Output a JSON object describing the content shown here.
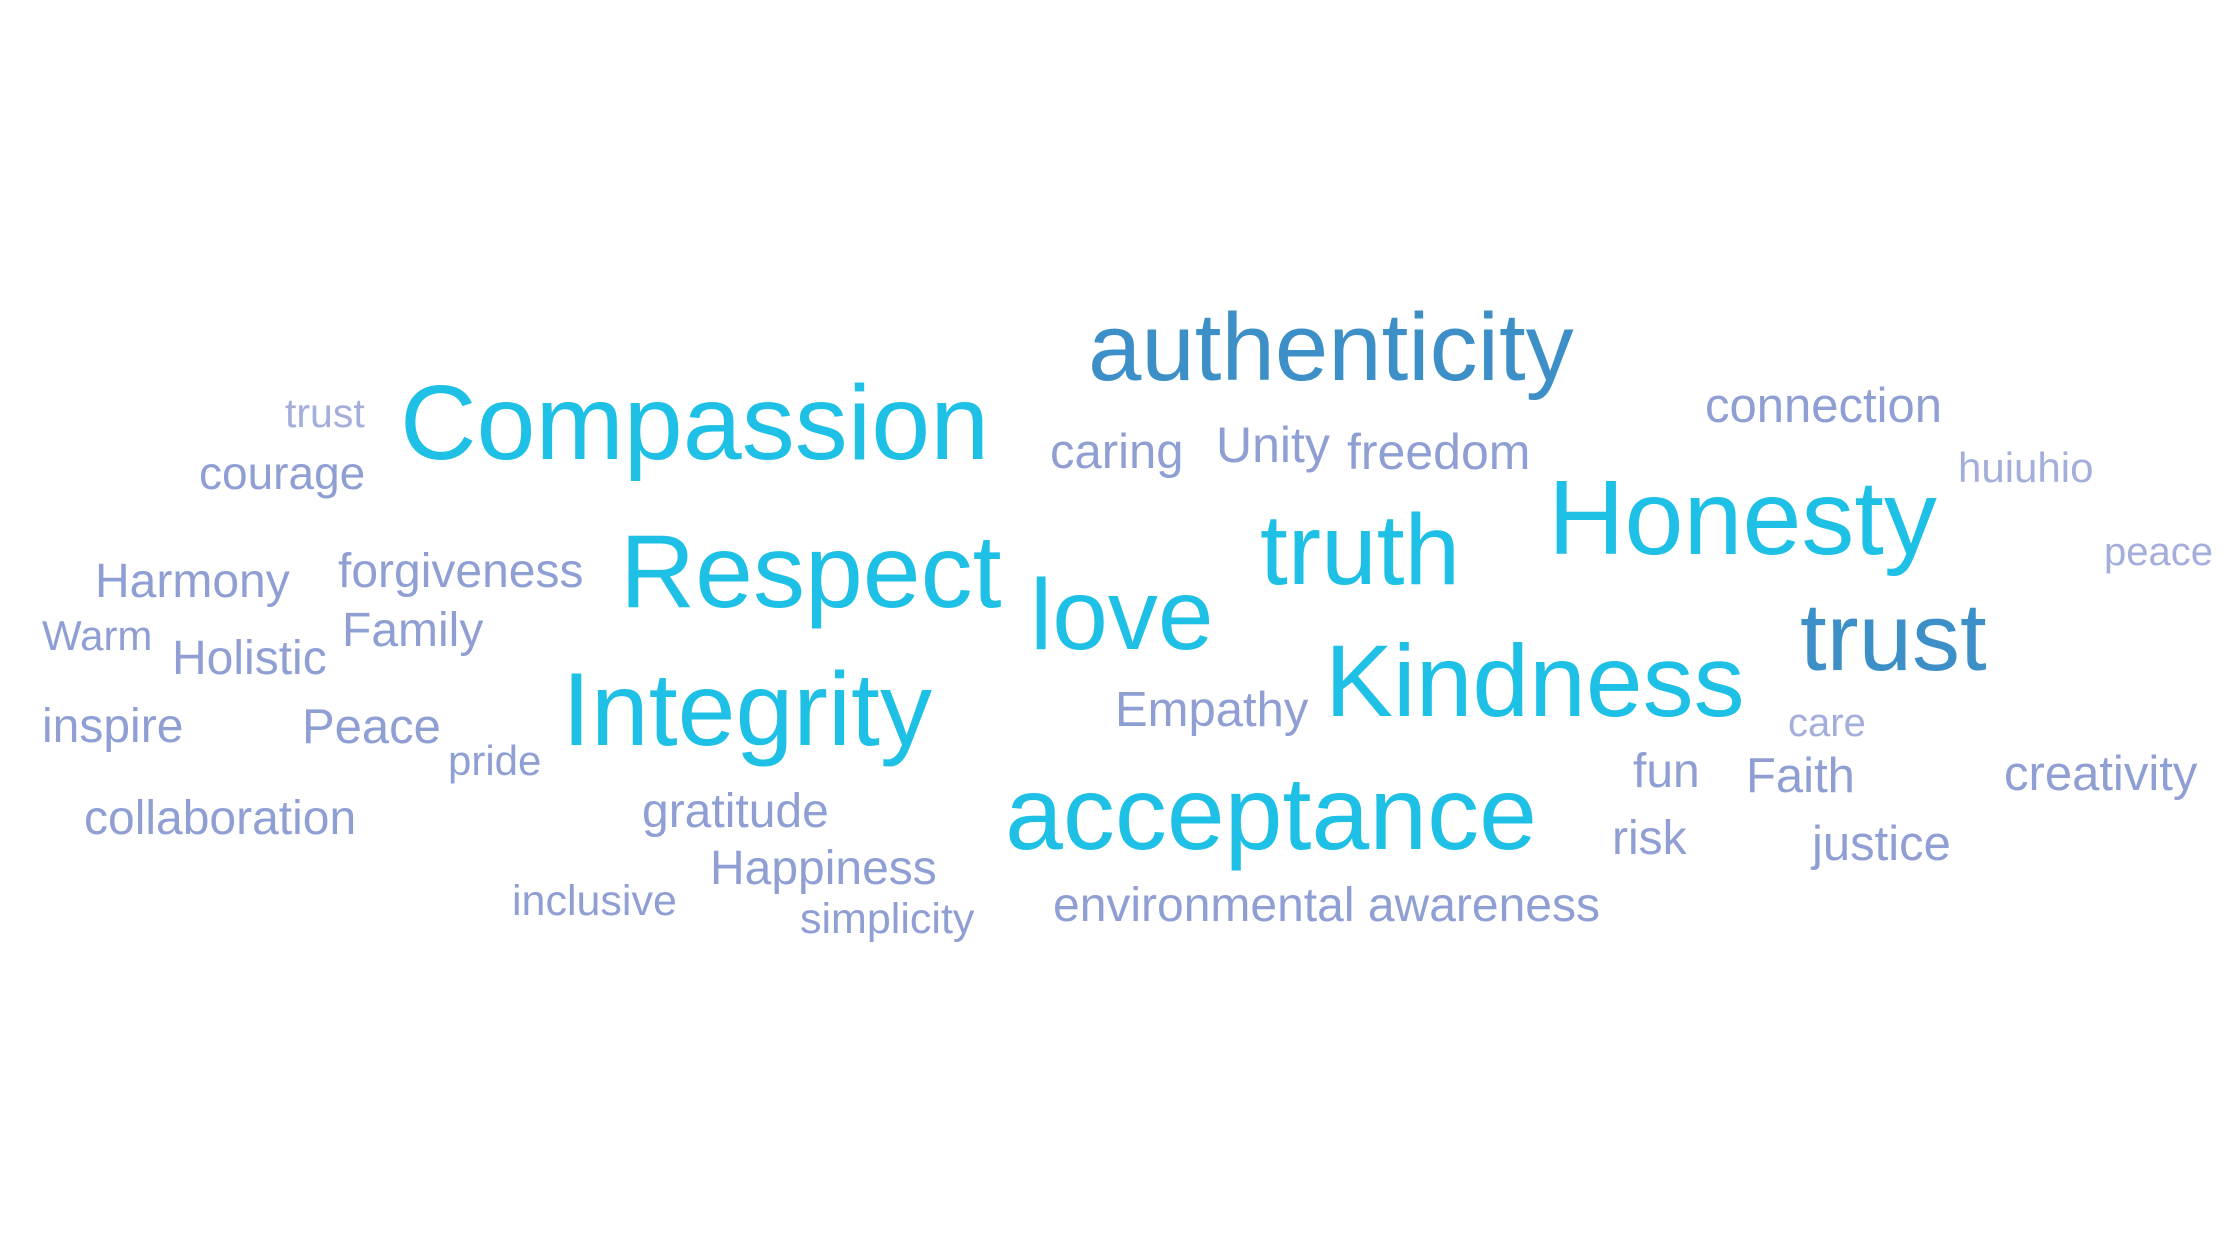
{
  "colors": {
    "background": "#ffffff",
    "cyan": "#1ec0e6",
    "blue": "#3d8fc8",
    "lavender": "#8f9fd3",
    "lavender_light": "#a3aedb"
  },
  "words": {
    "authenticity": "authenticity",
    "compassion": "Compassion",
    "trust_small": "trust",
    "courage": "courage",
    "caring": "caring",
    "unity": "Unity",
    "freedom": "freedom",
    "connection": "connection",
    "huiuhio": "huiuhio",
    "honesty": "Honesty",
    "truth": "truth",
    "respect": "Respect",
    "love": "love",
    "harmony": "Harmony",
    "forgiveness": "forgiveness",
    "peace_small": "peace",
    "warm": "Warm",
    "family": "Family",
    "holistic": "Holistic",
    "trust_big": "trust",
    "kindness": "Kindness",
    "integrity": "Integrity",
    "empathy": "Empathy",
    "inspire": "inspire",
    "peace_mid": "Peace",
    "pride": "pride",
    "care": "care",
    "fun": "fun",
    "faith": "Faith",
    "creativity": "creativity",
    "acceptance": "acceptance",
    "collaboration": "collaboration",
    "gratitude": "gratitude",
    "risk": "risk",
    "justice": "justice",
    "happiness": "Happiness",
    "inclusive": "inclusive",
    "simplicity": "simplicity",
    "environmental_awareness": "environmental awareness"
  }
}
